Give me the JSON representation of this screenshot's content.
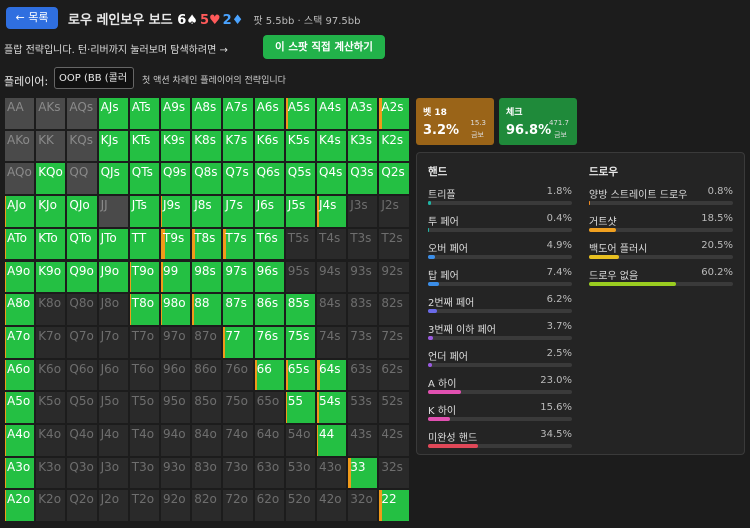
{
  "header": {
    "back": "← 목록",
    "title": "로우 레인보우 보드",
    "board": [
      {
        "text": "6♠",
        "color": "#ffffff"
      },
      {
        "text": "5♥",
        "color": "#ff5a5a"
      },
      {
        "text": "2♦",
        "color": "#4aa3ff"
      }
    ],
    "info": "팟 5.5bb · 스택 97.5bb"
  },
  "intro": {
    "text": "플랍 전략입니다. 턴·리버까지 눌러보며 탐색하려면 →",
    "button": "이 스팟 직접 계산하기"
  },
  "player": {
    "label": "플레이어:",
    "select": "OOP (BB (콜러",
    "note": "첫 액션 차례인 플레이어의 전략입니다"
  },
  "grid": {
    "rows": [
      {
        "hands": [
          "AA",
          "AKs",
          "AQs",
          "AJs",
          "ATs",
          "A9s",
          "A8s",
          "A7s",
          "A6s",
          "A5s",
          "A4s",
          "A3s",
          "A2s"
        ],
        "range": "LLLGGGGGGGGGG",
        "bet": [
          null,
          null,
          null,
          0,
          0,
          0,
          0,
          0,
          0,
          8,
          0,
          0,
          8
        ]
      },
      {
        "hands": [
          "AKo",
          "KK",
          "KQs",
          "KJs",
          "KTs",
          "K9s",
          "K8s",
          "K7s",
          "K6s",
          "K5s",
          "K4s",
          "K3s",
          "K2s"
        ],
        "range": "LLLGGGGGGGGGG",
        "bet": [
          null,
          null,
          null,
          0,
          0,
          0,
          0,
          0,
          0,
          0,
          0,
          0,
          0
        ]
      },
      {
        "hands": [
          "AQo",
          "KQo",
          "QQ",
          "QJs",
          "QTs",
          "Q9s",
          "Q8s",
          "Q7s",
          "Q6s",
          "Q5s",
          "Q4s",
          "Q3s",
          "Q2s"
        ],
        "range": "LGLGGGGGGGGGG",
        "bet": [
          null,
          0,
          null,
          0,
          0,
          0,
          0,
          0,
          0,
          0,
          0,
          0,
          0
        ]
      },
      {
        "hands": [
          "AJo",
          "KJo",
          "QJo",
          "JJ",
          "JTs",
          "J9s",
          "J8s",
          "J7s",
          "J6s",
          "J5s",
          "J4s",
          "J3s",
          "J2s"
        ],
        "range": "GGGLGGGGGGGDD",
        "bet": [
          3,
          0,
          0,
          null,
          0,
          5,
          0,
          0,
          0,
          0,
          8,
          null,
          null
        ]
      },
      {
        "hands": [
          "ATo",
          "KTo",
          "QTo",
          "JTo",
          "TT",
          "T9s",
          "T8s",
          "T7s",
          "T6s",
          "T5s",
          "T4s",
          "T3s",
          "T2s"
        ],
        "range": "GGGGGGGGGDDDD",
        "bet": [
          3,
          0,
          0,
          0,
          0,
          15,
          8,
          8,
          0,
          null,
          null,
          null,
          null
        ]
      },
      {
        "hands": [
          "A9o",
          "K9o",
          "Q9o",
          "J9o",
          "T9o",
          "99",
          "98s",
          "97s",
          "96s",
          "95s",
          "94s",
          "93s",
          "92s"
        ],
        "range": "GGGGGGGGGDDDD",
        "bet": [
          3,
          0,
          0,
          0,
          3,
          8,
          0,
          0,
          0,
          null,
          null,
          null,
          null
        ]
      },
      {
        "hands": [
          "A8o",
          "K8o",
          "Q8o",
          "J8o",
          "T8o",
          "98o",
          "88",
          "87s",
          "86s",
          "85s",
          "84s",
          "83s",
          "82s"
        ],
        "range": "GDDDGGGGGGDDD",
        "bet": [
          3,
          null,
          null,
          null,
          5,
          5,
          5,
          0,
          0,
          0,
          null,
          null,
          null
        ]
      },
      {
        "hands": [
          "A7o",
          "K7o",
          "Q7o",
          "J7o",
          "T7o",
          "97o",
          "87o",
          "77",
          "76s",
          "75s",
          "74s",
          "73s",
          "72s"
        ],
        "range": "GDDDDDDGGGDDD",
        "bet": [
          3,
          null,
          null,
          null,
          null,
          null,
          null,
          5,
          0,
          0,
          null,
          null,
          null
        ]
      },
      {
        "hands": [
          "A6o",
          "K6o",
          "Q6o",
          "J6o",
          "T6o",
          "96o",
          "86o",
          "76o",
          "66",
          "65s",
          "64s",
          "63s",
          "62s"
        ],
        "range": "GDDDDDDDGGGDD",
        "bet": [
          3,
          null,
          null,
          null,
          null,
          null,
          null,
          null,
          8,
          8,
          10,
          null,
          null
        ]
      },
      {
        "hands": [
          "A5o",
          "K5o",
          "Q5o",
          "J5o",
          "T5o",
          "95o",
          "85o",
          "75o",
          "65o",
          "55",
          "54s",
          "53s",
          "52s"
        ],
        "range": "GDDDDDDDDGGDD",
        "bet": [
          3,
          null,
          null,
          null,
          null,
          null,
          null,
          null,
          null,
          5,
          8,
          null,
          null
        ]
      },
      {
        "hands": [
          "A4o",
          "K4o",
          "Q4o",
          "J4o",
          "T4o",
          "94o",
          "84o",
          "74o",
          "64o",
          "54o",
          "44",
          "43s",
          "42s"
        ],
        "range": "GDDDDDDDDDGDD",
        "bet": [
          3,
          null,
          null,
          null,
          null,
          null,
          null,
          null,
          null,
          null,
          5,
          null,
          null
        ]
      },
      {
        "hands": [
          "A3o",
          "K3o",
          "Q3o",
          "J3o",
          "T3o",
          "93o",
          "83o",
          "73o",
          "63o",
          "53o",
          "43o",
          "33",
          "32s"
        ],
        "range": "GDDDDDDDDDDGD",
        "bet": [
          3,
          null,
          null,
          null,
          null,
          null,
          null,
          null,
          null,
          null,
          null,
          8,
          null
        ]
      },
      {
        "hands": [
          "A2o",
          "K2o",
          "Q2o",
          "J2o",
          "T2o",
          "92o",
          "82o",
          "72o",
          "62o",
          "52o",
          "42o",
          "32o",
          "22"
        ],
        "range": "GDDDDDDDDDDDG",
        "bet": [
          3,
          null,
          null,
          null,
          null,
          null,
          null,
          null,
          null,
          null,
          null,
          null,
          10
        ]
      }
    ]
  },
  "actions": [
    {
      "name": "벳 18",
      "pct": "3.2%",
      "ev": "15.3",
      "unit": "금보",
      "color": "#9a6418"
    },
    {
      "name": "체크",
      "pct": "96.8%",
      "ev": "471.7",
      "unit": "금보",
      "color": "#1f8a3a"
    }
  ],
  "breakdown": {
    "bar_max": 100,
    "columns": [
      {
        "title": "핸드",
        "items": [
          {
            "name": "트리플",
            "value": 1.8,
            "label": "1.8%",
            "color": "#1fb5a5"
          },
          {
            "name": "투 페어",
            "value": 0.4,
            "label": "0.4%",
            "color": "#1fb5a5"
          },
          {
            "name": "오버 페어",
            "value": 4.9,
            "label": "4.9%",
            "color": "#3b8ee8"
          },
          {
            "name": "탑 페어",
            "value": 7.4,
            "label": "7.4%",
            "color": "#3b8ee8"
          },
          {
            "name": "2번째 페어",
            "value": 6.2,
            "label": "6.2%",
            "color": "#6a6ae8"
          },
          {
            "name": "3번째 이하 페어",
            "value": 3.7,
            "label": "3.7%",
            "color": "#9a5ae0"
          },
          {
            "name": "언더 페어",
            "value": 2.5,
            "label": "2.5%",
            "color": "#9a5ae0"
          },
          {
            "name": "A 하이",
            "value": 23.0,
            "label": "23.0%",
            "color": "#e050b0"
          },
          {
            "name": "K 하이",
            "value": 15.6,
            "label": "15.6%",
            "color": "#e050b0"
          },
          {
            "name": "미완성 핸드",
            "value": 34.5,
            "label": "34.5%",
            "color": "#e04858"
          }
        ]
      },
      {
        "title": "드로우",
        "items": [
          {
            "name": "양방 스트레이트 드로우",
            "value": 0.8,
            "label": "0.8%",
            "color": "#f08a20"
          },
          {
            "name": "거트샷",
            "value": 18.5,
            "label": "18.5%",
            "color": "#f0a020"
          },
          {
            "name": "백도어 플러시",
            "value": 20.5,
            "label": "20.5%",
            "color": "#e8c020"
          },
          {
            "name": "드로우 없음",
            "value": 60.2,
            "label": "60.2%",
            "color": "#9acd20"
          }
        ]
      }
    ]
  }
}
